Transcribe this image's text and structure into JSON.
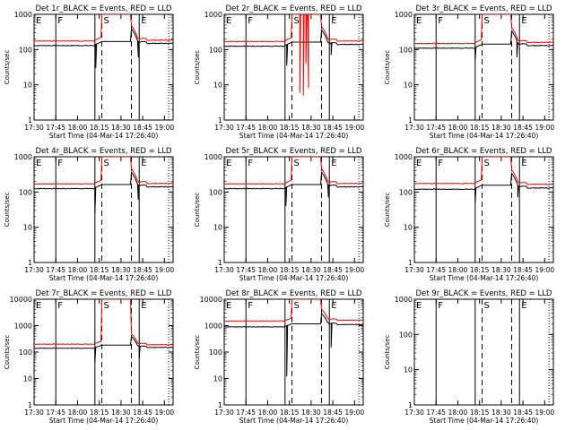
{
  "chart_data": [
    {
      "title": "Det 1r_BLACK = Events, RED = LLD",
      "ymax": 1000,
      "black": {
        "pre": 130,
        "post": 150,
        "drop": [
          [
            18.21,
            30
          ],
          [
            18.7,
            60
          ]
        ]
      },
      "red": {
        "pre": 175,
        "post": 185,
        "peak": 1000,
        "drop": []
      }
    },
    {
      "title": "Det 2r_BLACK = Events, RED = LLD",
      "ymax": 1000,
      "black": {
        "pre": 125,
        "post": 140,
        "drop": [
          [
            18.22,
            35
          ],
          [
            18.73,
            70
          ]
        ]
      },
      "red": {
        "pre": 170,
        "post": 175,
        "peak": 1000,
        "drop": [
          [
            18.37,
            6
          ],
          [
            18.41,
            5
          ],
          [
            18.44,
            40
          ],
          [
            18.47,
            8
          ]
        ]
      }
    },
    {
      "title": "Det 3r_BLACK = Events, RED = LLD",
      "ymax": 1000,
      "black": {
        "pre": 110,
        "post": 130,
        "drop": [
          [
            18.2,
            50
          ],
          [
            18.68,
            60
          ]
        ]
      },
      "red": {
        "pre": 150,
        "post": 160,
        "peak": 1000,
        "drop": []
      }
    },
    {
      "title": "Det 4r_BLACK = Events, RED = LLD",
      "ymax": 1000,
      "black": {
        "pre": 125,
        "post": 140,
        "drop": [
          [
            18.2,
            25
          ],
          [
            18.7,
            60
          ]
        ]
      },
      "red": {
        "pre": 170,
        "post": 175,
        "peak": 1000,
        "drop": []
      }
    },
    {
      "title": "Det 5r_BLACK = Events, RED = LLD",
      "ymax": 1000,
      "black": {
        "pre": 125,
        "post": 140,
        "drop": [
          [
            18.21,
            40
          ],
          [
            18.7,
            70
          ]
        ]
      },
      "red": {
        "pre": 170,
        "post": 175,
        "peak": 1000,
        "drop": []
      }
    },
    {
      "title": "Det 6r_BLACK = Events, RED = LLD",
      "ymax": 1000,
      "black": {
        "pre": 120,
        "post": 130,
        "drop": [
          [
            18.2,
            50
          ],
          [
            18.69,
            70
          ]
        ]
      },
      "red": {
        "pre": 175,
        "post": 165,
        "peak": 1000,
        "drop": []
      }
    },
    {
      "title": "Det 7r_BLACK = Events, RED = LLD",
      "ymax": 10000,
      "black": {
        "pre": 140,
        "post": 150,
        "drop": [
          [
            18.2,
            40
          ],
          [
            18.71,
            60
          ]
        ]
      },
      "red": {
        "pre": 200,
        "post": 190,
        "peak": 10000,
        "drop": []
      }
    },
    {
      "title": "Det 8r_BLACK = Events, RED = LLD",
      "ymax": 10000,
      "black": {
        "pre": 900,
        "post": 1100,
        "drop": [
          [
            18.22,
            12
          ],
          [
            18.73,
            150
          ]
        ]
      },
      "red": {
        "pre": 1500,
        "post": 1600,
        "peak": 10000,
        "drop": []
      }
    },
    {
      "title": "Det 9r_BLACK = Events, RED = LLD",
      "ymax": 1000,
      "black": null,
      "red": null
    }
  ],
  "x_ticks": [
    "17:30",
    "17:45",
    "18:00",
    "18:15",
    "18:30",
    "18:45",
    "19:00"
  ],
  "x_tick_values": [
    17.5,
    17.75,
    18.0,
    18.25,
    18.5,
    18.75,
    19.0
  ],
  "xlim": [
    17.5,
    19.1
  ],
  "xlabel": "Start Time (04-Mar-14 17:26:40)",
  "ylabel": "Counts/sec",
  "ymin": 1,
  "solid_lines": [
    17.5,
    17.75,
    18.2,
    18.71
  ],
  "dashed_lines": [
    18.28,
    18.62
  ],
  "dotted_lines": [
    19.05
  ],
  "markers": [
    {
      "label": "E",
      "x": 17.51
    },
    {
      "label": "F",
      "x": 17.76
    },
    {
      "label": "S",
      "x": 18.29
    },
    {
      "label": "E",
      "x": 18.72
    }
  ],
  "colors": {
    "black_series": "#000000",
    "red_series": "#ff0000",
    "axes": "#000000",
    "background": "#ffffff"
  }
}
